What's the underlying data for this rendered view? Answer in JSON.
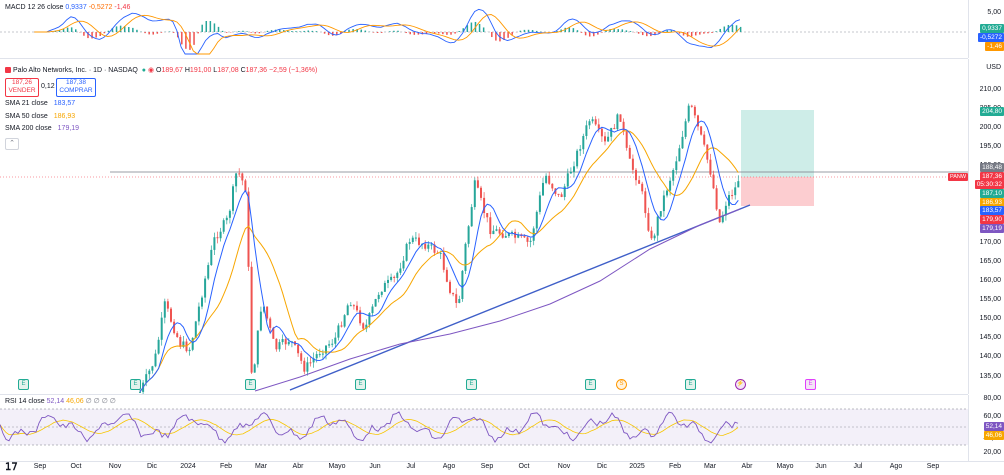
{
  "macd": {
    "title": "MACD 12 26 close",
    "v1": "0,9337",
    "v2": "-0,5272",
    "v3": "-1,46",
    "axis": [
      "5,00"
    ],
    "tags": [
      "0,9337",
      "-0,5272",
      "-1,46"
    ]
  },
  "header": {
    "symbol": "Palo Alto Networks, Inc. · 1D · NASDAQ",
    "o_label": "O",
    "o": "189,67",
    "h_label": "H",
    "h": "191,00",
    "l_label": "L",
    "l": "187,08",
    "c_label": "C",
    "c": "187,36",
    "change": "−2,59 (−1,36%)",
    "sell_price": "187,26",
    "sell_label": "VENDER",
    "spread": "0,12",
    "buy_price": "187,38",
    "buy_label": "COMPRAR",
    "currency": "USD"
  },
  "indicators": [
    {
      "label": "SMA 21 close",
      "value": "183,57",
      "color": "#2962ff"
    },
    {
      "label": "SMA 50 close",
      "value": "186,93",
      "color": "#f7a600"
    },
    {
      "label": "SMA 200 close",
      "value": "179,19",
      "color": "#7e57c2"
    }
  ],
  "price_axis": {
    "ticks": [
      "210,00",
      "205,00",
      "200,00",
      "195,00",
      "190,00",
      "185,00",
      "180,00",
      "175,00",
      "170,00",
      "165,00",
      "160,00",
      "155,00",
      "150,00",
      "145,00",
      "140,00",
      "135,00"
    ]
  },
  "price_tags": {
    "target": "204,80",
    "t1": "188,48",
    "symbol_tag": "PANW",
    "last": "187,36",
    "countdown": "05:30:32",
    "t2": "187,10",
    "sma50": "186,93",
    "sma21": "183,57",
    "stop": "179,90",
    "sma200": "179,19"
  },
  "rsi": {
    "title": "RSI 14 close",
    "v1": "52,14",
    "v2": "46,06",
    "extra": "∅ ∅ ∅ ∅",
    "axis": [
      "80,00",
      "60,00",
      "40,00",
      "20,00"
    ],
    "tags": [
      "52,14",
      "46,06"
    ]
  },
  "time_axis": [
    "Sep",
    "Oct",
    "Nov",
    "Dic",
    "2024",
    "Feb",
    "Mar",
    "Abr",
    "Mayo",
    "Jun",
    "Jul",
    "Ago",
    "Sep",
    "Oct",
    "Nov",
    "Dic",
    "2025",
    "Feb",
    "Mar",
    "Abr",
    "Mayo",
    "Jun",
    "Jul",
    "Ago",
    "Sep"
  ],
  "events": [
    {
      "type": "e",
      "glyph": "E"
    },
    {
      "type": "e",
      "glyph": "E"
    },
    {
      "type": "e",
      "glyph": "E"
    },
    {
      "type": "e",
      "glyph": "E"
    },
    {
      "type": "e",
      "glyph": "E"
    },
    {
      "type": "e",
      "glyph": "E"
    },
    {
      "type": "d",
      "glyph": "S"
    },
    {
      "type": "e",
      "glyph": "E"
    },
    {
      "type": "f",
      "glyph": "⚡"
    },
    {
      "type": "p",
      "glyph": "E"
    }
  ],
  "colors": {
    "up": "#26a69a",
    "down": "#ef5350",
    "sma21": "#2962ff",
    "sma50": "#f7a600",
    "sma200": "#7e57c2",
    "trend": "#3f5fc8",
    "rsi": "#7e57c2"
  },
  "logo": "TV"
}
